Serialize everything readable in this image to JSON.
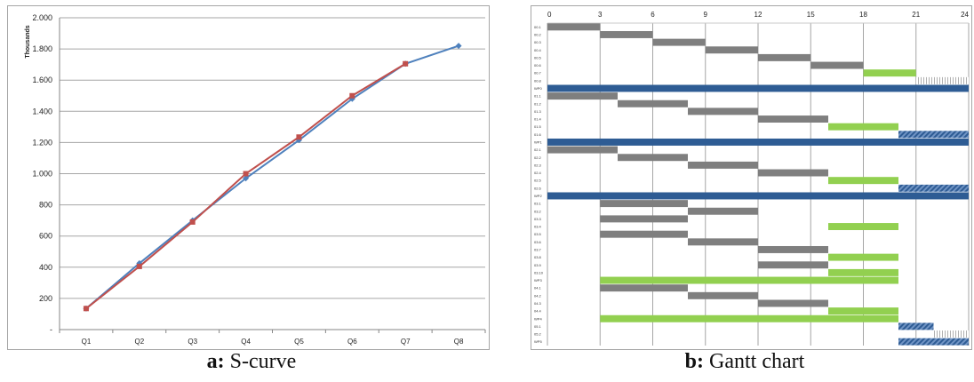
{
  "captions": {
    "a_letter": "a:",
    "a_text": " S-curve",
    "b_letter": "b:",
    "b_text": " Gantt chart"
  },
  "colors": {
    "planned": "#4f81bd",
    "actual": "#c0504d",
    "gantt_grey": "#7f7f7f",
    "gantt_blue": "#2e5c94",
    "gantt_green": "#92d050",
    "grid": "#a6a6a6"
  },
  "chart_data": [
    {
      "type": "line",
      "title": "",
      "xlabel": "",
      "ylabel": "Thousands",
      "categories": [
        "Q1",
        "Q2",
        "Q3",
        "Q4",
        "Q5",
        "Q6",
        "Q7",
        "Q8"
      ],
      "ylim": [
        0,
        2000
      ],
      "yticks": [
        0,
        200,
        400,
        600,
        800,
        1000,
        1200,
        1400,
        1600,
        1800,
        2000
      ],
      "ytick_labels": [
        "-",
        "200",
        "400",
        "600",
        "800",
        "1.000",
        "1.200",
        "1.400",
        "1.600",
        "1.800",
        "2.000"
      ],
      "grid": "horizontal",
      "series": [
        {
          "color": "#4f81bd",
          "marker": "diamond",
          "values": [
            135,
            425,
            700,
            970,
            1215,
            1480,
            1705,
            1820
          ]
        },
        {
          "color": "#c0504d",
          "marker": "square",
          "values": [
            135,
            405,
            690,
            1000,
            1235,
            1500,
            1705,
            null
          ]
        }
      ]
    },
    {
      "type": "gantt",
      "xlim": [
        0,
        24
      ],
      "xticks": [
        0,
        3,
        6,
        9,
        12,
        15,
        18,
        21,
        24
      ],
      "grid": "vertical",
      "tasks": [
        {
          "label": "00.1",
          "start": 0,
          "end": 3,
          "style": "grey"
        },
        {
          "label": "00.2",
          "start": 3,
          "end": 6,
          "style": "grey"
        },
        {
          "label": "00.3",
          "start": 6,
          "end": 9,
          "style": "grey"
        },
        {
          "label": "00.4",
          "start": 9,
          "end": 12,
          "style": "grey"
        },
        {
          "label": "00.5",
          "start": 12,
          "end": 15,
          "style": "grey"
        },
        {
          "label": "00.6",
          "start": 15,
          "end": 18,
          "style": "grey"
        },
        {
          "label": "00.7",
          "start": 18,
          "end": 21,
          "style": "green"
        },
        {
          "label": "00.8",
          "start": 21,
          "end": 24,
          "style": "dotted"
        },
        {
          "label": "WP0",
          "start": 0,
          "end": 24,
          "style": "blue"
        },
        {
          "label": "01.1",
          "start": 0,
          "end": 4,
          "style": "grey"
        },
        {
          "label": "01.2",
          "start": 4,
          "end": 8,
          "style": "grey"
        },
        {
          "label": "01.3",
          "start": 8,
          "end": 12,
          "style": "grey"
        },
        {
          "label": "01.4",
          "start": 12,
          "end": 16,
          "style": "grey"
        },
        {
          "label": "01.5",
          "start": 16,
          "end": 20,
          "style": "green"
        },
        {
          "label": "01.6",
          "start": 20,
          "end": 24,
          "style": "hatched"
        },
        {
          "label": "WP1",
          "start": 0,
          "end": 24,
          "style": "blue"
        },
        {
          "label": "02.1",
          "start": 0,
          "end": 4,
          "style": "grey"
        },
        {
          "label": "02.2",
          "start": 4,
          "end": 8,
          "style": "grey"
        },
        {
          "label": "02.3",
          "start": 8,
          "end": 12,
          "style": "grey"
        },
        {
          "label": "02.4",
          "start": 12,
          "end": 16,
          "style": "grey"
        },
        {
          "label": "02.5",
          "start": 16,
          "end": 20,
          "style": "green"
        },
        {
          "label": "02.6",
          "start": 20,
          "end": 24,
          "style": "hatched"
        },
        {
          "label": "WP2",
          "start": 0,
          "end": 24,
          "style": "blue"
        },
        {
          "label": "03.1",
          "start": 3,
          "end": 8,
          "style": "grey"
        },
        {
          "label": "03.2",
          "start": 8,
          "end": 12,
          "style": "grey"
        },
        {
          "label": "03.3",
          "start": 3,
          "end": 8,
          "style": "grey"
        },
        {
          "label": "03.4",
          "start": 16,
          "end": 20,
          "style": "green"
        },
        {
          "label": "03.5",
          "start": 3,
          "end": 8,
          "style": "grey"
        },
        {
          "label": "03.6",
          "start": 8,
          "end": 12,
          "style": "grey"
        },
        {
          "label": "03.7",
          "start": 12,
          "end": 16,
          "style": "grey"
        },
        {
          "label": "03.8",
          "start": 16,
          "end": 20,
          "style": "green"
        },
        {
          "label": "03.9",
          "start": 12,
          "end": 16,
          "style": "grey"
        },
        {
          "label": "03.10",
          "start": 16,
          "end": 20,
          "style": "green"
        },
        {
          "label": "WP3",
          "start": 3,
          "end": 20,
          "style": "green"
        },
        {
          "label": "04.1",
          "start": 3,
          "end": 8,
          "style": "grey"
        },
        {
          "label": "04.2",
          "start": 8,
          "end": 12,
          "style": "grey"
        },
        {
          "label": "04.3",
          "start": 12,
          "end": 16,
          "style": "grey"
        },
        {
          "label": "04.4",
          "start": 16,
          "end": 20,
          "style": "green"
        },
        {
          "label": "WP4",
          "start": 3,
          "end": 20,
          "style": "green"
        },
        {
          "label": "05.1",
          "start": 20,
          "end": 22,
          "style": "hatched"
        },
        {
          "label": "05.2",
          "start": 22,
          "end": 24,
          "style": "dotted"
        },
        {
          "label": "WP5",
          "start": 20,
          "end": 24,
          "style": "hatched"
        }
      ]
    }
  ]
}
